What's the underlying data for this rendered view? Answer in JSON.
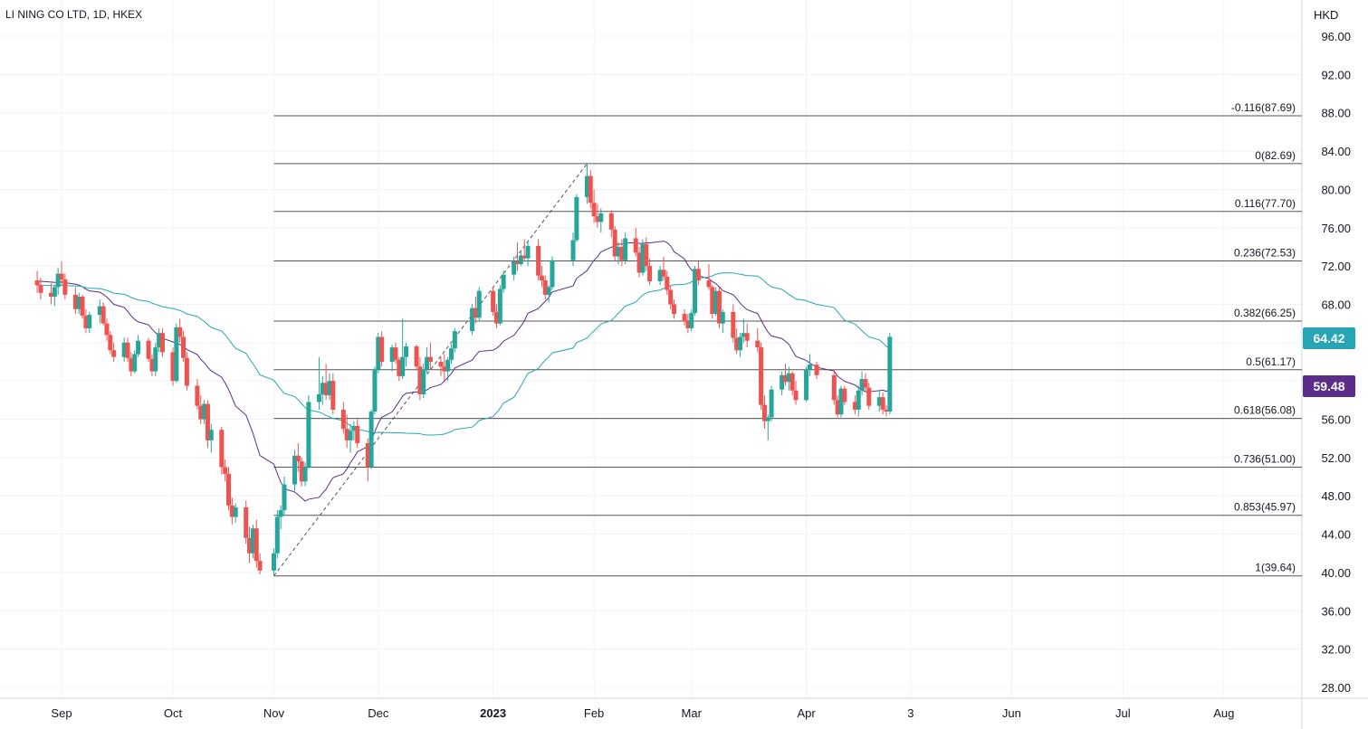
{
  "chart_title": "LI NING CO LTD, 1D, HKEX",
  "currency": "HKD",
  "colors": {
    "up": "#26a69a",
    "down": "#ef5350",
    "ma_fast": "#5b2c8a",
    "ma_slow": "#26a6b5",
    "fib_line": "#555555",
    "grid": "#f0f3fa"
  },
  "chart_data": {
    "type": "candlestick",
    "title": "LI NING CO LTD, 1D, HKEX",
    "y_axis": {
      "unit": "HKD",
      "range": [
        26,
        98
      ],
      "ticks": [
        "96.00",
        "92.00",
        "88.00",
        "84.00",
        "80.00",
        "76.00",
        "72.00",
        "68.00",
        "64.00",
        "60.00",
        "56.00",
        "52.00",
        "48.00",
        "44.00",
        "40.00",
        "36.00",
        "32.00",
        "28.00"
      ]
    },
    "x_axis": {
      "labels": [
        {
          "text": "Sep",
          "date": "2022-09-01"
        },
        {
          "text": "Oct",
          "date": "2022-10-03"
        },
        {
          "text": "Nov",
          "date": "2022-11-01"
        },
        {
          "text": "Dec",
          "date": "2022-12-01"
        },
        {
          "text": "2023",
          "date": "2023-01-03",
          "bold": true
        },
        {
          "text": "Feb",
          "date": "2023-02-01"
        },
        {
          "text": "Mar",
          "date": "2023-03-01"
        },
        {
          "text": "Apr",
          "date": "2023-04-03"
        },
        {
          "text": "3",
          "date": "2023-05-03"
        },
        {
          "text": "Jun",
          "date": "2023-06-01"
        },
        {
          "text": "Jul",
          "date": "2023-07-03"
        },
        {
          "text": "Aug",
          "date": "2023-08-01"
        }
      ]
    },
    "grid": true,
    "fib_retracement": {
      "from": {
        "date": "2022-11-01",
        "price": 39.64
      },
      "to": {
        "date": "2023-01-30",
        "price": 82.69
      },
      "levels": [
        {
          "label": "-0.116(87.69)",
          "price": 87.69
        },
        {
          "label": "0(82.69)",
          "price": 82.69
        },
        {
          "label": "0.116(77.70)",
          "price": 77.7
        },
        {
          "label": "0.236(72.53)",
          "price": 72.53
        },
        {
          "label": "0.382(66.25)",
          "price": 66.25
        },
        {
          "label": "0.5(61.17)",
          "price": 61.17
        },
        {
          "label": "0.618(56.08)",
          "price": 56.08
        },
        {
          "label": "0.736(51.00)",
          "price": 51.0
        },
        {
          "label": "0.853(45.97)",
          "price": 45.97
        },
        {
          "label": "1(39.64)",
          "price": 39.64
        }
      ]
    },
    "price_labels": [
      {
        "series": "ma_slow",
        "value": "64.42"
      },
      {
        "series": "ma_fast",
        "value": "59.48"
      }
    ],
    "ohlc": [
      [
        "2022-08-25",
        70.5,
        71.5,
        69.2,
        70.0
      ],
      [
        "2022-08-26",
        70.0,
        70.8,
        68.5,
        69.2
      ],
      [
        "2022-08-29",
        69.2,
        70.2,
        68.0,
        68.8
      ],
      [
        "2022-08-30",
        68.8,
        70.0,
        67.8,
        69.8
      ],
      [
        "2022-08-31",
        69.8,
        71.8,
        69.0,
        71.2
      ],
      [
        "2022-09-01",
        71.2,
        72.5,
        70.0,
        70.6
      ],
      [
        "2022-09-02",
        70.6,
        71.2,
        68.5,
        69.0
      ],
      [
        "2022-09-05",
        69.0,
        69.8,
        67.0,
        67.5
      ],
      [
        "2022-09-06",
        67.5,
        69.2,
        67.0,
        68.8
      ],
      [
        "2022-09-07",
        68.8,
        69.0,
        66.5,
        66.8
      ],
      [
        "2022-09-08",
        66.8,
        67.5,
        65.0,
        65.5
      ],
      [
        "2022-09-09",
        65.5,
        67.2,
        65.0,
        66.9
      ],
      [
        "2022-09-12",
        66.9,
        68.5,
        66.0,
        67.8
      ],
      [
        "2022-09-13",
        67.8,
        68.2,
        65.8,
        66.0
      ],
      [
        "2022-09-14",
        66.0,
        66.5,
        64.2,
        64.8
      ],
      [
        "2022-09-15",
        64.8,
        65.2,
        62.8,
        63.2
      ],
      [
        "2022-09-16",
        63.2,
        64.0,
        62.0,
        62.5
      ],
      [
        "2022-09-19",
        62.5,
        64.5,
        62.0,
        64.0
      ],
      [
        "2022-09-20",
        64.0,
        64.5,
        62.0,
        62.4
      ],
      [
        "2022-09-21",
        62.4,
        63.0,
        60.5,
        61.0
      ],
      [
        "2022-09-22",
        61.0,
        63.2,
        60.8,
        62.8
      ],
      [
        "2022-09-23",
        62.8,
        64.8,
        62.5,
        64.2
      ],
      [
        "2022-09-26",
        64.2,
        64.5,
        62.0,
        62.3
      ],
      [
        "2022-09-27",
        62.3,
        62.8,
        60.5,
        61.0
      ],
      [
        "2022-09-28",
        61.0,
        64.0,
        60.5,
        63.5
      ],
      [
        "2022-09-29",
        63.5,
        65.5,
        63.0,
        65.0
      ],
      [
        "2022-09-30",
        65.0,
        65.5,
        62.5,
        63.0
      ],
      [
        "2022-10-03",
        63.0,
        63.5,
        59.5,
        60.0
      ],
      [
        "2022-10-04",
        60.0,
        66.0,
        59.8,
        65.6
      ],
      [
        "2022-10-05",
        65.6,
        66.5,
        64.0,
        64.6
      ],
      [
        "2022-10-06",
        64.6,
        65.2,
        62.0,
        62.4
      ],
      [
        "2022-10-07",
        62.4,
        63.0,
        59.0,
        59.5
      ],
      [
        "2022-10-10",
        59.5,
        60.2,
        57.0,
        57.4
      ],
      [
        "2022-10-11",
        57.4,
        58.5,
        55.5,
        56.0
      ],
      [
        "2022-10-12",
        56.0,
        58.0,
        55.5,
        57.6
      ],
      [
        "2022-10-13",
        57.6,
        58.0,
        53.0,
        53.8
      ],
      [
        "2022-10-14",
        53.8,
        55.5,
        52.5,
        54.9
      ],
      [
        "2022-10-17",
        54.9,
        55.2,
        50.2,
        51.0
      ],
      [
        "2022-10-18",
        51.0,
        51.8,
        49.5,
        50.3
      ],
      [
        "2022-10-19",
        50.3,
        51.0,
        46.5,
        47.0
      ],
      [
        "2022-10-20",
        47.0,
        47.8,
        45.0,
        45.8
      ],
      [
        "2022-10-21",
        45.8,
        47.2,
        45.2,
        46.8
      ],
      [
        "2022-10-24",
        46.8,
        47.5,
        43.0,
        43.6
      ],
      [
        "2022-10-25",
        43.6,
        44.8,
        41.0,
        42.0
      ],
      [
        "2022-10-26",
        42.0,
        45.0,
        41.5,
        44.6
      ],
      [
        "2022-10-27",
        44.6,
        45.5,
        40.5,
        41.2
      ],
      [
        "2022-10-28",
        41.2,
        42.0,
        39.8,
        40.2
      ],
      [
        "2022-11-01",
        40.2,
        42.5,
        39.64,
        42.0
      ],
      [
        "2022-11-02",
        42.0,
        46.5,
        41.5,
        45.8
      ],
      [
        "2022-11-03",
        45.8,
        47.0,
        44.5,
        46.5
      ],
      [
        "2022-11-04",
        46.5,
        50.0,
        46.0,
        49.2
      ],
      [
        "2022-11-07",
        49.2,
        52.8,
        48.5,
        52.2
      ],
      [
        "2022-11-08",
        52.2,
        53.5,
        50.5,
        51.6
      ],
      [
        "2022-11-09",
        51.6,
        52.0,
        49.0,
        49.5
      ],
      [
        "2022-11-10",
        49.5,
        51.5,
        49.0,
        51.0
      ],
      [
        "2022-11-11",
        51.0,
        58.5,
        50.8,
        57.8
      ],
      [
        "2022-11-14",
        57.8,
        62.5,
        57.0,
        58.6
      ],
      [
        "2022-11-15",
        58.6,
        60.5,
        57.5,
        59.8
      ],
      [
        "2022-11-16",
        59.8,
        61.8,
        58.0,
        58.5
      ],
      [
        "2022-11-17",
        58.5,
        60.8,
        58.0,
        60.0
      ],
      [
        "2022-11-18",
        60.0,
        60.8,
        56.5,
        57.0
      ],
      [
        "2022-11-21",
        57.0,
        57.8,
        54.5,
        55.0
      ],
      [
        "2022-11-22",
        55.0,
        56.5,
        53.0,
        53.8
      ],
      [
        "2022-11-23",
        53.8,
        55.5,
        52.5,
        54.8
      ],
      [
        "2022-11-24",
        54.8,
        55.8,
        53.8,
        55.3
      ],
      [
        "2022-11-25",
        55.3,
        56.0,
        53.0,
        53.5
      ],
      [
        "2022-11-28",
        53.5,
        54.0,
        49.5,
        51.0
      ],
      [
        "2022-11-29",
        51.0,
        57.0,
        50.8,
        56.8
      ],
      [
        "2022-11-30",
        56.8,
        61.5,
        56.5,
        61.2
      ],
      [
        "2022-12-01",
        61.2,
        65.0,
        60.8,
        64.6
      ],
      [
        "2022-12-02",
        64.6,
        65.2,
        61.5,
        62.0
      ],
      [
        "2022-12-05",
        62.0,
        63.8,
        61.0,
        63.5
      ],
      [
        "2022-12-06",
        63.5,
        64.0,
        61.8,
        62.2
      ],
      [
        "2022-12-07",
        62.2,
        62.5,
        60.0,
        60.5
      ],
      [
        "2022-12-08",
        60.5,
        66.5,
        60.2,
        62.5
      ],
      [
        "2022-12-09",
        62.5,
        64.0,
        61.5,
        63.6
      ],
      [
        "2022-12-12",
        63.6,
        63.8,
        61.2,
        61.5
      ],
      [
        "2022-12-13",
        61.5,
        62.5,
        58.0,
        58.6
      ],
      [
        "2022-12-14",
        58.6,
        61.8,
        58.2,
        61.2
      ],
      [
        "2022-12-15",
        61.2,
        63.5,
        60.8,
        62.5
      ],
      [
        "2022-12-16",
        62.5,
        64.0,
        61.2,
        62.0
      ],
      [
        "2022-12-19",
        62.0,
        62.5,
        60.5,
        61.5
      ],
      [
        "2022-12-20",
        61.5,
        62.8,
        60.0,
        61.0
      ],
      [
        "2022-12-21",
        61.0,
        62.5,
        60.0,
        62.2
      ],
      [
        "2022-12-22",
        62.2,
        63.8,
        61.8,
        63.4
      ],
      [
        "2022-12-23",
        63.4,
        65.5,
        63.0,
        65.2
      ],
      [
        "2022-12-28",
        65.2,
        68.0,
        64.8,
        67.6
      ],
      [
        "2022-12-29",
        67.6,
        68.8,
        66.0,
        66.6
      ],
      [
        "2022-12-30",
        66.6,
        69.8,
        66.2,
        69.4
      ],
      [
        "2023-01-03",
        69.4,
        69.8,
        66.8,
        67.2
      ],
      [
        "2023-01-04",
        67.2,
        68.0,
        65.5,
        66.0
      ],
      [
        "2023-01-05",
        66.0,
        70.0,
        65.8,
        69.6
      ],
      [
        "2023-01-06",
        69.6,
        71.5,
        69.2,
        71.1
      ],
      [
        "2023-01-09",
        71.1,
        73.0,
        70.5,
        72.5
      ],
      [
        "2023-01-10",
        72.5,
        74.5,
        71.5,
        72.2
      ],
      [
        "2023-01-11",
        72.2,
        73.5,
        72.0,
        73.1
      ],
      [
        "2023-01-12",
        73.1,
        74.8,
        72.5,
        72.8
      ],
      [
        "2023-01-13",
        72.8,
        74.5,
        72.0,
        74.1
      ],
      [
        "2023-01-16",
        74.1,
        74.8,
        70.5,
        71.0
      ],
      [
        "2023-01-17",
        71.0,
        72.0,
        69.8,
        70.5
      ],
      [
        "2023-01-18",
        70.5,
        71.0,
        68.5,
        69.0
      ],
      [
        "2023-01-19",
        69.0,
        70.0,
        68.2,
        69.8
      ],
      [
        "2023-01-20",
        69.8,
        73.0,
        69.5,
        72.6
      ],
      [
        "2023-01-26",
        72.6,
        75.5,
        72.0,
        74.7
      ],
      [
        "2023-01-27",
        74.7,
        79.5,
        74.5,
        79.2
      ],
      [
        "2023-01-30",
        79.2,
        82.69,
        78.5,
        81.4
      ],
      [
        "2023-01-31",
        81.4,
        82.0,
        78.0,
        78.6
      ],
      [
        "2023-02-01",
        78.6,
        80.0,
        76.5,
        77.2
      ],
      [
        "2023-02-02",
        77.2,
        78.5,
        76.0,
        76.6
      ],
      [
        "2023-02-03",
        76.6,
        78.0,
        75.5,
        77.5
      ],
      [
        "2023-02-06",
        77.5,
        77.8,
        75.0,
        75.8
      ],
      [
        "2023-02-07",
        75.8,
        76.2,
        72.5,
        73.0
      ],
      [
        "2023-02-08",
        73.0,
        74.5,
        72.2,
        74.0
      ],
      [
        "2023-02-09",
        74.0,
        74.8,
        72.0,
        72.6
      ],
      [
        "2023-02-10",
        72.6,
        75.5,
        72.2,
        74.9
      ],
      [
        "2023-02-13",
        74.9,
        76.0,
        73.0,
        73.4
      ],
      [
        "2023-02-14",
        73.4,
        74.0,
        70.8,
        71.3
      ],
      [
        "2023-02-15",
        71.3,
        74.8,
        71.0,
        74.3
      ],
      [
        "2023-02-16",
        74.3,
        75.0,
        71.5,
        72.0
      ],
      [
        "2023-02-17",
        72.0,
        72.8,
        70.0,
        70.4
      ],
      [
        "2023-02-20",
        70.4,
        72.0,
        70.0,
        71.6
      ],
      [
        "2023-02-21",
        71.6,
        73.0,
        70.5,
        70.9
      ],
      [
        "2023-02-22",
        70.9,
        71.5,
        69.0,
        69.5
      ],
      [
        "2023-02-23",
        69.5,
        70.0,
        67.5,
        68.0
      ],
      [
        "2023-02-24",
        68.0,
        68.5,
        66.5,
        67.0
      ],
      [
        "2023-02-27",
        67.0,
        67.5,
        65.8,
        66.2
      ],
      [
        "2023-02-28",
        66.2,
        67.0,
        65.0,
        65.5
      ],
      [
        "2023-03-01",
        65.5,
        67.5,
        65.2,
        67.1
      ],
      [
        "2023-03-02",
        67.1,
        72.0,
        66.8,
        71.7
      ],
      [
        "2023-03-03",
        71.7,
        72.5,
        70.0,
        70.5
      ],
      [
        "2023-03-06",
        70.5,
        72.2,
        69.5,
        69.8
      ],
      [
        "2023-03-07",
        69.8,
        70.0,
        66.5,
        67.0
      ],
      [
        "2023-03-08",
        67.0,
        69.8,
        66.8,
        69.4
      ],
      [
        "2023-03-09",
        69.4,
        69.8,
        65.5,
        66.0
      ],
      [
        "2023-03-10",
        66.0,
        67.5,
        65.0,
        67.2
      ],
      [
        "2023-03-13",
        67.2,
        68.0,
        64.0,
        64.5
      ],
      [
        "2023-03-14",
        64.5,
        65.5,
        62.8,
        63.2
      ],
      [
        "2023-03-15",
        63.2,
        65.0,
        62.5,
        64.6
      ],
      [
        "2023-03-16",
        64.6,
        66.5,
        64.0,
        65.0
      ],
      [
        "2023-03-17",
        65.0,
        66.0,
        63.5,
        64.2
      ],
      [
        "2023-03-20",
        64.2,
        65.5,
        63.0,
        63.5
      ],
      [
        "2023-03-21",
        63.5,
        64.0,
        57.0,
        57.5
      ],
      [
        "2023-03-22",
        57.5,
        58.5,
        55.0,
        55.8
      ],
      [
        "2023-03-23",
        55.8,
        56.5,
        53.8,
        56.2
      ],
      [
        "2023-03-24",
        56.2,
        59.5,
        55.8,
        59.1
      ],
      [
        "2023-03-27",
        59.1,
        61.0,
        58.5,
        60.6
      ],
      [
        "2023-03-28",
        60.6,
        61.8,
        59.5,
        59.9
      ],
      [
        "2023-03-29",
        59.9,
        61.5,
        59.0,
        60.8
      ],
      [
        "2023-03-30",
        60.8,
        61.0,
        58.5,
        59.0
      ],
      [
        "2023-03-31",
        59.0,
        60.0,
        57.5,
        58.0
      ],
      [
        "2023-04-03",
        58.0,
        61.5,
        57.8,
        61.2
      ],
      [
        "2023-04-04",
        61.2,
        62.8,
        60.5,
        61.7
      ],
      [
        "2023-04-06",
        61.7,
        62.0,
        60.2,
        60.6
      ],
      [
        "2023-04-11",
        60.6,
        61.2,
        57.5,
        58.0
      ],
      [
        "2023-04-12",
        58.0,
        58.5,
        56.2,
        56.5
      ],
      [
        "2023-04-13",
        56.5,
        59.5,
        56.2,
        59.2
      ],
      [
        "2023-04-14",
        59.2,
        59.5,
        57.5,
        57.8
      ],
      [
        "2023-04-17",
        57.8,
        58.5,
        56.5,
        57.0
      ],
      [
        "2023-04-18",
        57.0,
        59.5,
        56.3,
        59.0
      ],
      [
        "2023-04-19",
        59.0,
        61.0,
        58.5,
        60.2
      ],
      [
        "2023-04-20",
        60.2,
        60.8,
        58.8,
        59.3
      ],
      [
        "2023-04-21",
        59.3,
        59.8,
        57.0,
        57.4
      ],
      [
        "2023-04-24",
        57.4,
        59.0,
        56.8,
        58.3
      ],
      [
        "2023-04-25",
        58.3,
        58.8,
        56.5,
        57.0
      ],
      [
        "2023-04-26",
        57.0,
        57.5,
        56.3,
        56.8
      ],
      [
        "2023-04-27",
        56.8,
        65.0,
        56.5,
        64.6
      ]
    ]
  }
}
